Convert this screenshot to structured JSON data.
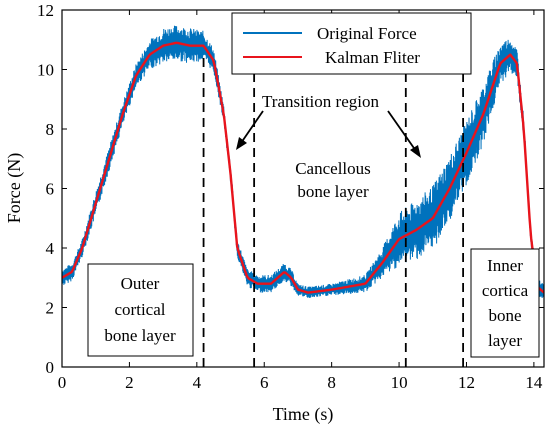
{
  "chart_data": {
    "type": "line",
    "xlabel": "Time (s)",
    "ylabel": "Force (N)",
    "xlim": [
      0,
      14.3
    ],
    "ylim": [
      0,
      12
    ],
    "xticks": [
      0,
      2,
      4,
      6,
      8,
      10,
      12,
      14
    ],
    "yticks": [
      0,
      2,
      4,
      6,
      8,
      10,
      12
    ],
    "grid": false,
    "legend": {
      "placement": "top-center"
    },
    "series": [
      {
        "name": "Original Force",
        "color": "#0072BD",
        "noise": "high-frequency oscillation around the filtered curve",
        "x": [
          0,
          0.3,
          0.6,
          1.0,
          1.4,
          1.8,
          2.2,
          2.6,
          3.0,
          3.4,
          3.8,
          4.2,
          4.5,
          4.8,
          5.0,
          5.2,
          5.5,
          5.8,
          6.2,
          6.6,
          6.8,
          7.0,
          7.3,
          8.0,
          9.0,
          9.5,
          10.0,
          10.5,
          11.0,
          11.5,
          12.0,
          12.5,
          13.0,
          13.3,
          13.5,
          13.7,
          13.9,
          14.1,
          14.3
        ],
        "y": [
          3.0,
          3.2,
          4.0,
          5.5,
          7.0,
          8.5,
          9.8,
          10.5,
          10.8,
          10.9,
          10.8,
          10.8,
          10.3,
          8.5,
          6.5,
          4.0,
          3.0,
          2.8,
          2.8,
          3.2,
          3.0,
          2.6,
          2.5,
          2.6,
          2.8,
          3.5,
          4.3,
          4.6,
          5.0,
          6.0,
          7.2,
          8.5,
          10.2,
          10.5,
          10.2,
          8.0,
          4.5,
          2.7,
          2.5
        ],
        "amplitude": [
          0.3,
          0.3,
          0.3,
          0.4,
          0.4,
          0.4,
          0.4,
          0.5,
          0.6,
          0.6,
          0.6,
          0.5,
          0.4,
          0.3,
          0.3,
          0.3,
          0.3,
          0.3,
          0.3,
          0.3,
          0.3,
          0.2,
          0.2,
          0.2,
          0.3,
          0.5,
          0.9,
          1.0,
          1.1,
          1.1,
          1.1,
          1.0,
          0.7,
          0.6,
          0.5,
          0.4,
          0.3,
          0.3,
          0.3
        ]
      },
      {
        "name": "Kalman Fliter",
        "color": "#E8141C",
        "x": [
          0,
          0.3,
          0.6,
          1.0,
          1.4,
          1.8,
          2.2,
          2.6,
          3.0,
          3.4,
          3.8,
          4.2,
          4.5,
          4.8,
          5.0,
          5.2,
          5.5,
          5.8,
          6.2,
          6.6,
          6.8,
          7.0,
          7.3,
          8.0,
          9.0,
          9.5,
          10.0,
          10.5,
          11.0,
          11.5,
          12.0,
          12.5,
          13.0,
          13.3,
          13.5,
          13.7,
          13.9,
          14.1,
          14.3
        ],
        "y": [
          3.0,
          3.2,
          4.0,
          5.5,
          7.0,
          8.5,
          9.8,
          10.5,
          10.8,
          10.9,
          10.8,
          10.8,
          10.3,
          8.5,
          6.5,
          4.0,
          3.0,
          2.8,
          2.8,
          3.2,
          3.0,
          2.6,
          2.5,
          2.6,
          2.8,
          3.5,
          4.3,
          4.6,
          5.0,
          6.0,
          7.2,
          8.5,
          10.2,
          10.5,
          10.2,
          8.0,
          4.5,
          2.7,
          2.5
        ]
      }
    ],
    "vlines": [
      4.2,
      5.7,
      10.2,
      11.9
    ],
    "annotations": {
      "transition": "Transition region",
      "cancellous_line1": "Cancellous",
      "cancellous_line2": "bone layer",
      "outer": [
        "Outer",
        "cortical",
        "bone layer"
      ],
      "inner": [
        "Inner",
        "cortica",
        "bone",
        "layer"
      ]
    }
  }
}
